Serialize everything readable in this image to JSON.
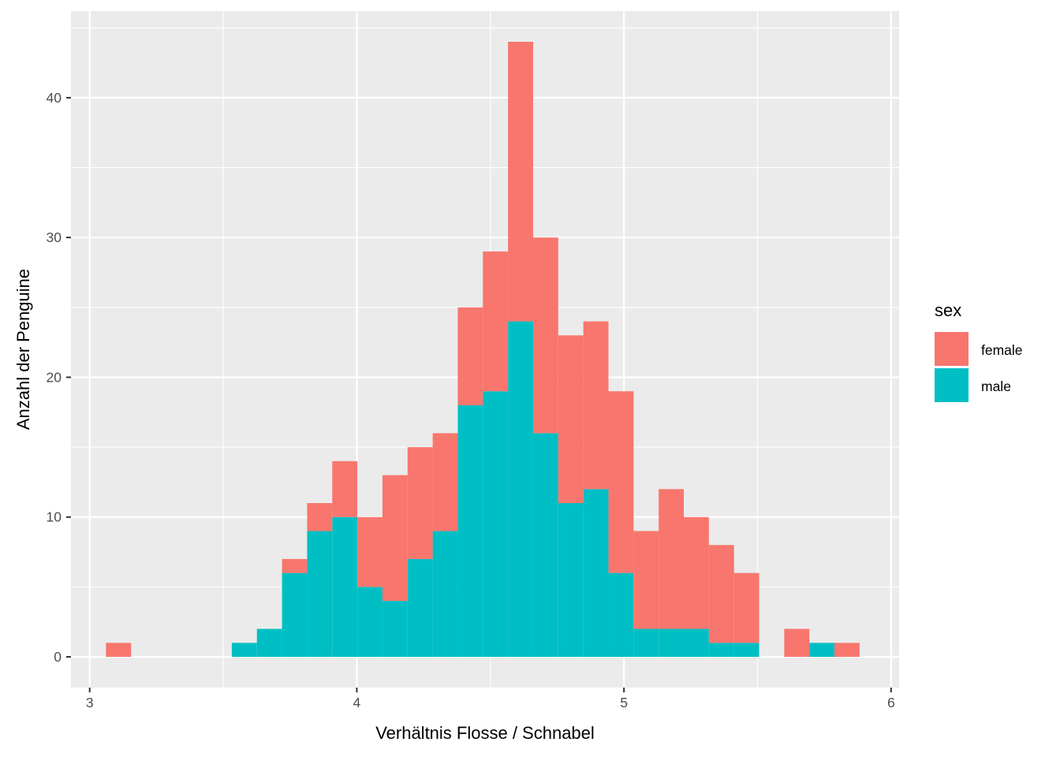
{
  "chart_data": {
    "type": "bar",
    "subtype": "stacked-histogram",
    "title": "",
    "xlabel": "Verhältnis Flosse / Schnabel",
    "ylabel": "Anzahl der Penguine",
    "xlim": [
      2.93,
      6.03
    ],
    "ylim": [
      -2.2,
      46.2
    ],
    "x_ticks": [
      3,
      4,
      5,
      6
    ],
    "y_ticks": [
      0,
      10,
      20,
      30,
      40
    ],
    "grid": true,
    "legend": {
      "title": "sex",
      "position": "right"
    },
    "bin_width": 0.094,
    "series": [
      {
        "name": "female",
        "color": "#F8766D",
        "bins": [
          {
            "x0": 3.061,
            "x1": 3.155,
            "count": 1
          },
          {
            "x0": 3.72,
            "x1": 3.814,
            "count": 1
          },
          {
            "x0": 3.814,
            "x1": 3.908,
            "count": 2
          },
          {
            "x0": 3.908,
            "x1": 4.002,
            "count": 4
          },
          {
            "x0": 4.002,
            "x1": 4.096,
            "count": 5
          },
          {
            "x0": 4.096,
            "x1": 4.19,
            "count": 9
          },
          {
            "x0": 4.19,
            "x1": 4.284,
            "count": 8
          },
          {
            "x0": 4.284,
            "x1": 4.378,
            "count": 7
          },
          {
            "x0": 4.378,
            "x1": 4.472,
            "count": 7
          },
          {
            "x0": 4.472,
            "x1": 4.566,
            "count": 10
          },
          {
            "x0": 4.566,
            "x1": 4.66,
            "count": 20
          },
          {
            "x0": 4.66,
            "x1": 4.754,
            "count": 14
          },
          {
            "x0": 4.754,
            "x1": 4.848,
            "count": 12
          },
          {
            "x0": 4.848,
            "x1": 4.942,
            "count": 12
          },
          {
            "x0": 4.942,
            "x1": 5.036,
            "count": 13
          },
          {
            "x0": 5.036,
            "x1": 5.13,
            "count": 7
          },
          {
            "x0": 5.13,
            "x1": 5.224,
            "count": 10
          },
          {
            "x0": 5.224,
            "x1": 5.318,
            "count": 8
          },
          {
            "x0": 5.318,
            "x1": 5.412,
            "count": 7
          },
          {
            "x0": 5.412,
            "x1": 5.506,
            "count": 5
          },
          {
            "x0": 5.6,
            "x1": 5.694,
            "count": 2
          },
          {
            "x0": 5.788,
            "x1": 5.882,
            "count": 1
          }
        ]
      },
      {
        "name": "male",
        "color": "#00BFC4",
        "bins": [
          {
            "x0": 3.532,
            "x1": 3.626,
            "count": 1
          },
          {
            "x0": 3.626,
            "x1": 3.72,
            "count": 2
          },
          {
            "x0": 3.72,
            "x1": 3.814,
            "count": 6
          },
          {
            "x0": 3.814,
            "x1": 3.908,
            "count": 9
          },
          {
            "x0": 3.908,
            "x1": 4.002,
            "count": 10
          },
          {
            "x0": 4.002,
            "x1": 4.096,
            "count": 5
          },
          {
            "x0": 4.096,
            "x1": 4.19,
            "count": 4
          },
          {
            "x0": 4.19,
            "x1": 4.284,
            "count": 7
          },
          {
            "x0": 4.284,
            "x1": 4.378,
            "count": 9
          },
          {
            "x0": 4.378,
            "x1": 4.472,
            "count": 18
          },
          {
            "x0": 4.472,
            "x1": 4.566,
            "count": 19
          },
          {
            "x0": 4.566,
            "x1": 4.66,
            "count": 24
          },
          {
            "x0": 4.66,
            "x1": 4.754,
            "count": 16
          },
          {
            "x0": 4.754,
            "x1": 4.848,
            "count": 11
          },
          {
            "x0": 4.848,
            "x1": 4.942,
            "count": 12
          },
          {
            "x0": 4.942,
            "x1": 5.036,
            "count": 6
          },
          {
            "x0": 5.036,
            "x1": 5.13,
            "count": 2
          },
          {
            "x0": 5.13,
            "x1": 5.224,
            "count": 2
          },
          {
            "x0": 5.224,
            "x1": 5.318,
            "count": 2
          },
          {
            "x0": 5.318,
            "x1": 5.412,
            "count": 1
          },
          {
            "x0": 5.412,
            "x1": 5.506,
            "count": 1
          },
          {
            "x0": 5.694,
            "x1": 5.788,
            "count": 1
          }
        ]
      }
    ]
  }
}
